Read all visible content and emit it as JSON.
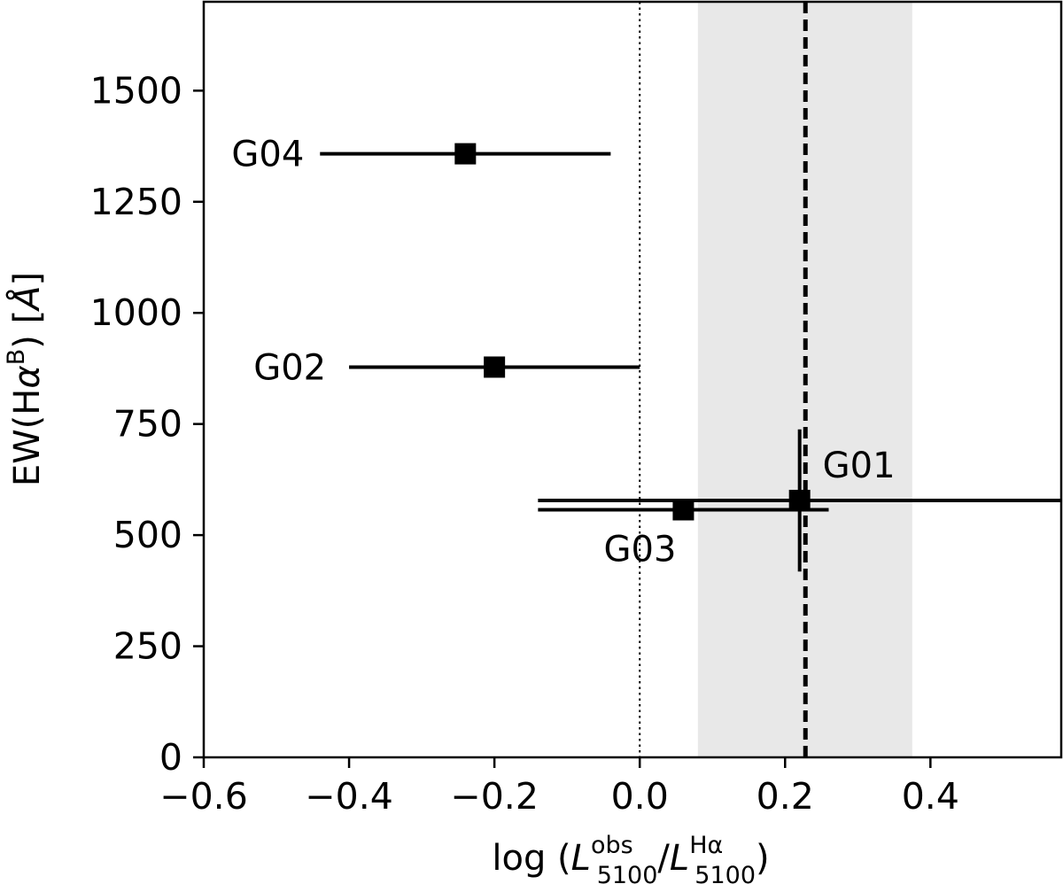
{
  "chart_data": {
    "type": "scatter",
    "xlabel": {
      "prefix": "log (",
      "num_var": "L",
      "num_sup": "obs",
      "num_sub": "5100",
      "slash": "/",
      "den_var": "L",
      "den_sup": "Hα",
      "den_sub": "5100",
      "suffix": ")"
    },
    "ylabel": {
      "prefix": "EW(H",
      "alpha": "α",
      "sup": "B",
      "suffix": ") [",
      "unit": "Å",
      "close": "]"
    },
    "xlim": [
      -0.6,
      0.58
    ],
    "ylim": [
      0,
      1700
    ],
    "x_ticks": [
      -0.6,
      -0.4,
      -0.2,
      0.0,
      0.2,
      0.4
    ],
    "x_tick_labels": [
      "−0.6",
      "−0.4",
      "−0.2",
      "0.0",
      "0.2",
      "0.4"
    ],
    "y_ticks": [
      0,
      250,
      500,
      750,
      1000,
      1250,
      1500
    ],
    "y_tick_labels": [
      "0",
      "250",
      "500",
      "750",
      "1000",
      "1250",
      "1500"
    ],
    "grid": false,
    "shaded_band": {
      "x_start": 0.08,
      "x_end": 0.375,
      "color": "#e8e8e8"
    },
    "reference_lines": [
      {
        "x": 0.0,
        "style": "dotted"
      },
      {
        "x": 0.228,
        "style": "dashed"
      }
    ],
    "points": [
      {
        "label": "G01",
        "x": 0.22,
        "y": 578,
        "x_err_low": 0.36,
        "x_err_high": 0.36,
        "y_err_low": 160,
        "y_err_high": 160
      },
      {
        "label": "G02",
        "x": -0.2,
        "y": 878,
        "x_err_low": 0.2,
        "x_err_high": 0.2,
        "y_err_low": 18,
        "y_err_high": 18
      },
      {
        "label": "G03",
        "x": 0.06,
        "y": 557,
        "x_err_low": 0.2,
        "x_err_high": 0.2,
        "y_err_low": 22,
        "y_err_high": 22
      },
      {
        "label": "G04",
        "x": -0.24,
        "y": 1358,
        "x_err_low": 0.2,
        "x_err_high": 0.2,
        "y_err_low": 22,
        "y_err_high": 22
      }
    ]
  }
}
